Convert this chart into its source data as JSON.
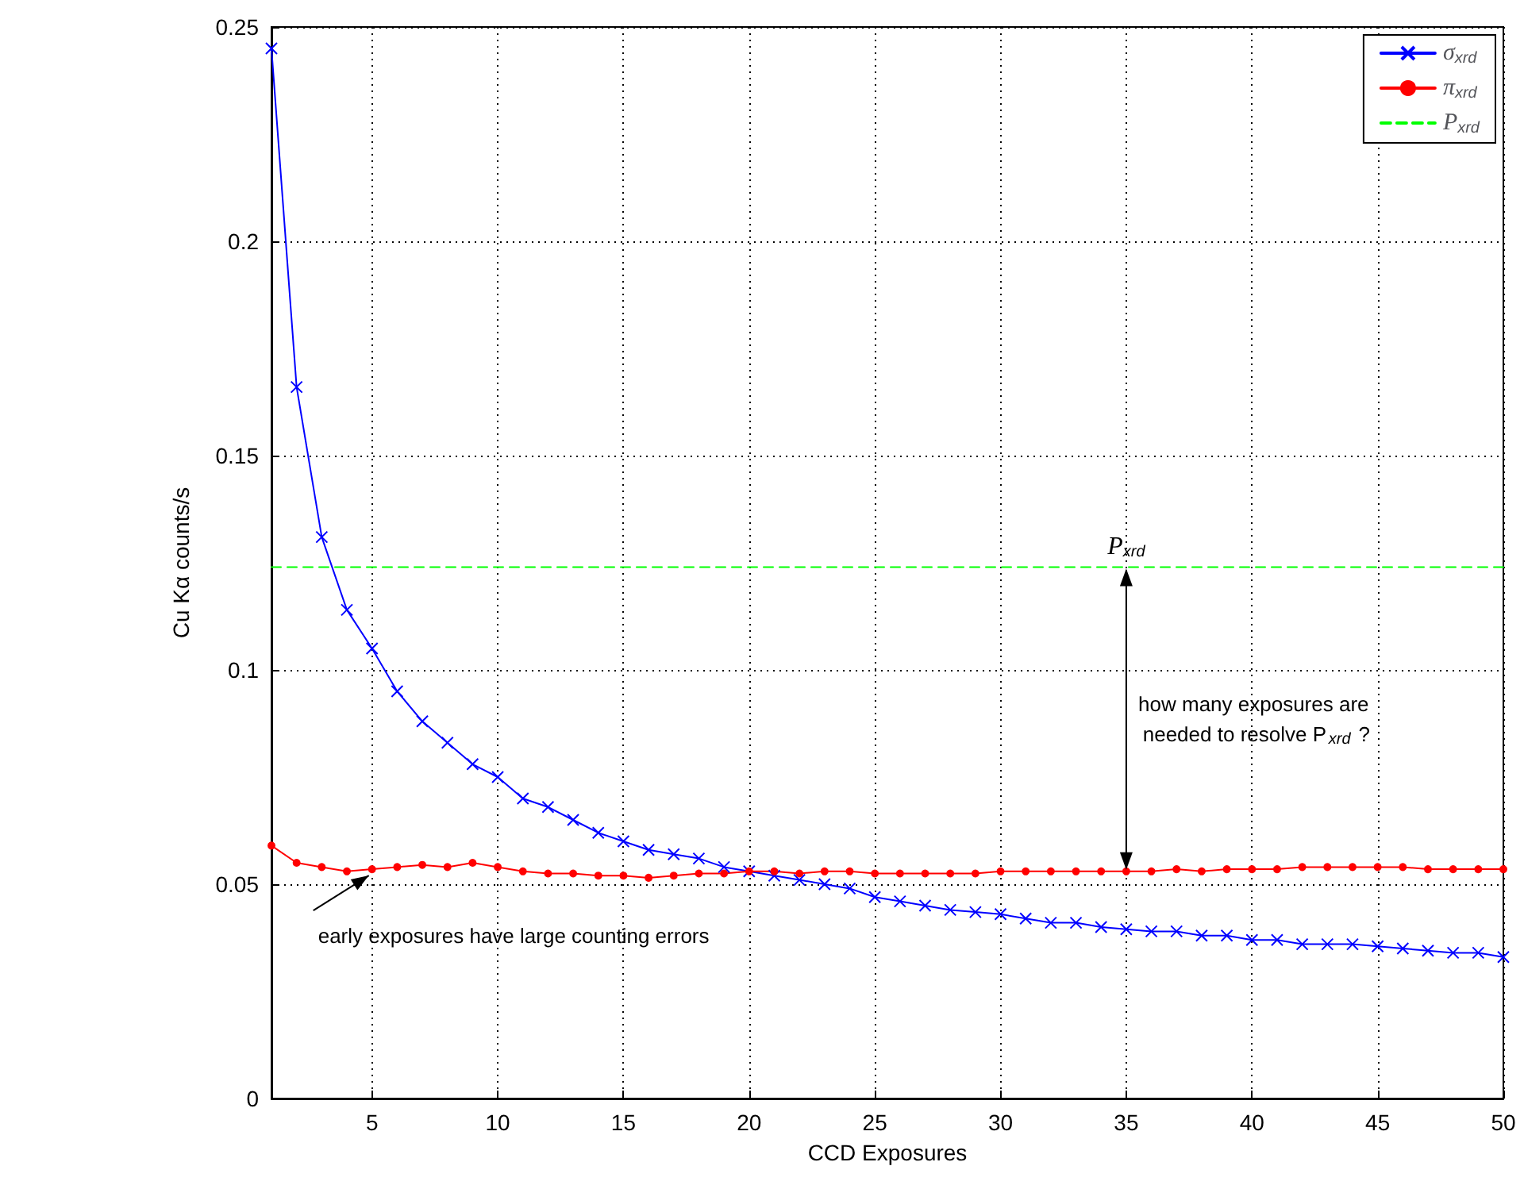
{
  "chart_data": {
    "type": "line",
    "xlabel": "CCD Exposures",
    "ylabel": "Cu Kα counts/s",
    "xlim": [
      1,
      50
    ],
    "xticks": [
      5,
      10,
      15,
      20,
      25,
      30,
      35,
      40,
      45,
      50
    ],
    "ylim": [
      0,
      0.25
    ],
    "yticks": [
      0,
      0.05,
      0.1,
      0.15,
      0.2,
      0.25
    ],
    "grid": true,
    "legend": "top right",
    "x": [
      1,
      2,
      3,
      4,
      5,
      6,
      7,
      8,
      9,
      10,
      11,
      12,
      13,
      14,
      15,
      16,
      17,
      18,
      19,
      20,
      21,
      22,
      23,
      24,
      25,
      26,
      27,
      28,
      29,
      30,
      31,
      32,
      33,
      34,
      35,
      36,
      37,
      38,
      39,
      40,
      41,
      42,
      43,
      44,
      45,
      46,
      47,
      48,
      49,
      50
    ],
    "series": [
      {
        "name": "σ$_{xrd}$",
        "color": "#0000ff",
        "marker": "cross",
        "line_style": "solid",
        "values": [
          0.245,
          0.166,
          0.131,
          0.114,
          0.105,
          0.095,
          0.088,
          0.083,
          0.078,
          0.075,
          0.07,
          0.068,
          0.065,
          0.062,
          0.06,
          0.058,
          0.057,
          0.056,
          0.054,
          0.053,
          0.052,
          0.051,
          0.05,
          0.049,
          0.047,
          0.046,
          0.045,
          0.044,
          0.0435,
          0.043,
          0.042,
          0.041,
          0.041,
          0.04,
          0.0395,
          0.039,
          0.039,
          0.038,
          0.038,
          0.037,
          0.037,
          0.036,
          0.036,
          0.036,
          0.0355,
          0.035,
          0.0345,
          0.034,
          0.034,
          0.033
        ]
      },
      {
        "name": "π$_{xrd}$",
        "color": "#ff0000",
        "marker": "circle",
        "line_style": "solid",
        "values": [
          0.059,
          0.055,
          0.054,
          0.053,
          0.0535,
          0.054,
          0.0545,
          0.054,
          0.055,
          0.054,
          0.053,
          0.0525,
          0.0525,
          0.052,
          0.052,
          0.0515,
          0.052,
          0.0525,
          0.0525,
          0.053,
          0.053,
          0.0525,
          0.053,
          0.053,
          0.0525,
          0.0525,
          0.0525,
          0.0525,
          0.0525,
          0.053,
          0.053,
          0.053,
          0.053,
          0.053,
          0.053,
          0.053,
          0.0535,
          0.053,
          0.0535,
          0.0535,
          0.0535,
          0.054,
          0.054,
          0.054,
          0.054,
          0.054,
          0.0535,
          0.0535,
          0.0535,
          0.0535
        ]
      },
      {
        "name": "P$_{xrd}$",
        "color": "#00ff00",
        "marker": "none",
        "line_style": "dashed",
        "x": [
          1,
          50
        ],
        "values": [
          0.124,
          0.124
        ]
      }
    ],
    "annotations": [
      {
        "text": "P$_{xrd}$",
        "x": 35,
        "y": 0.124
      },
      "how many exposures are needed to resolve P$_{xrd}$ ?",
      {
        "text": "early exposures have large counting errors",
        "x": 5,
        "y": 0.0535
      }
    ]
  }
}
